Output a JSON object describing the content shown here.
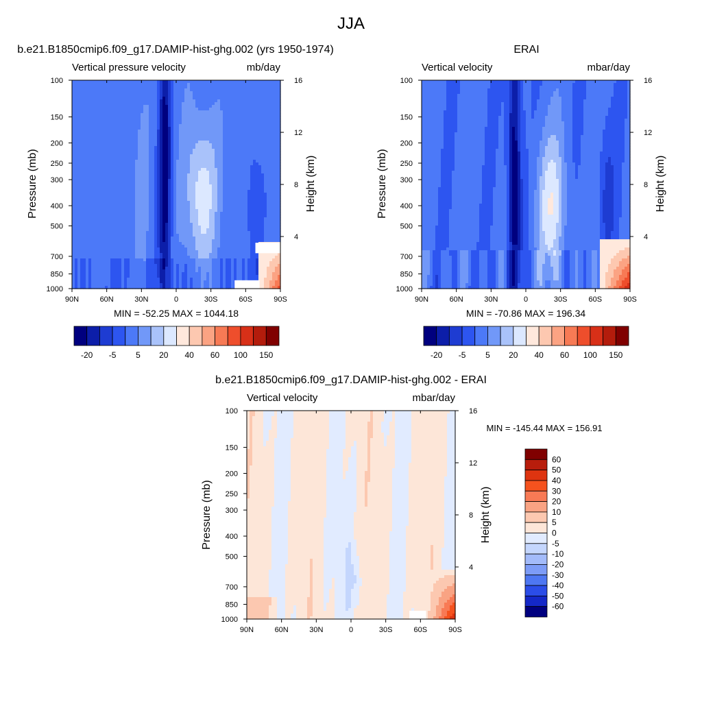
{
  "figure": {
    "title": "JJA"
  },
  "lat_labels": [
    "90N",
    "60N",
    "30N",
    "0",
    "30S",
    "60S",
    "90S"
  ],
  "lat_values": [
    90,
    60,
    30,
    0,
    -30,
    -60,
    -90
  ],
  "pressure_levels": [
    100,
    150,
    200,
    250,
    300,
    400,
    500,
    700,
    850,
    1000
  ],
  "height_km_ticks": [
    4,
    8,
    12,
    16
  ],
  "chart_data": [
    {
      "type": "heatmap",
      "title": "b.e21.B1850cmip6.f09_g17.DAMIP-hist-ghg.002 (yrs 1950-1974)",
      "left_label": "Vertical pressure velocity",
      "right_label": "mb/day",
      "xlabel": "",
      "ylabel": "Pressure (mb)",
      "y2label": "Height (km)",
      "stats": "MIN = -52.25  MAX = 1044.18",
      "xlim": [
        90,
        -90
      ],
      "ylim": [
        1000,
        100
      ],
      "colorbar": {
        "orientation": "horizontal",
        "levels": [
          -20,
          -5,
          5,
          20,
          40,
          60,
          100,
          150
        ],
        "tick_labels": [
          "-20",
          "-5",
          "5",
          "20",
          "40",
          "60",
          "100",
          "150"
        ],
        "colors": [
          "#00007f",
          "#0c1ea9",
          "#1e3cd2",
          "#2d55f0",
          "#4c79f8",
          "#7198f8",
          "#a9c2fa",
          "#dce8ff",
          "#ffe8dc",
          "#fdc8b0",
          "#fba383",
          "#f77a55",
          "#ee4e2c",
          "#d83018",
          "#b31c0c",
          "#800000"
        ]
      }
    },
    {
      "type": "heatmap",
      "title": "ERAI",
      "left_label": "Vertical velocity",
      "right_label": "mbar/day",
      "xlabel": "",
      "ylabel": "Pressure (mb)",
      "y2label": "Height (km)",
      "stats": "MIN = -70.86  MAX = 196.34",
      "xlim": [
        90,
        -90
      ],
      "ylim": [
        1000,
        100
      ],
      "colorbar": {
        "orientation": "horizontal",
        "levels": [
          -20,
          -5,
          5,
          20,
          40,
          60,
          100,
          150
        ],
        "tick_labels": [
          "-20",
          "-5",
          "5",
          "20",
          "40",
          "60",
          "100",
          "150"
        ],
        "colors": [
          "#00007f",
          "#0c1ea9",
          "#1e3cd2",
          "#2d55f0",
          "#4c79f8",
          "#7198f8",
          "#a9c2fa",
          "#dce8ff",
          "#ffe8dc",
          "#fdc8b0",
          "#fba383",
          "#f77a55",
          "#ee4e2c",
          "#d83018",
          "#b31c0c",
          "#800000"
        ]
      }
    },
    {
      "type": "heatmap",
      "title": "b.e21.B1850cmip6.f09_g17.DAMIP-hist-ghg.002 - ERAI",
      "left_label": "Vertical velocity",
      "right_label": "mbar/day",
      "xlabel": "",
      "ylabel": "Pressure (mb)",
      "y2label": "Height (km)",
      "stats": "MIN = -145.44  MAX = 156.91",
      "xlim": [
        90,
        -90
      ],
      "ylim": [
        1000,
        100
      ],
      "colorbar": {
        "orientation": "vertical",
        "levels": [
          60,
          50,
          40,
          30,
          20,
          10,
          5,
          0,
          -5,
          -10,
          -20,
          -30,
          -40,
          -50,
          -60
        ],
        "tick_labels": [
          "60",
          "50",
          "40",
          "30",
          "20",
          "10",
          "5",
          "0",
          "-5",
          "-10",
          "-20",
          "-30",
          "-40",
          "-50",
          "-60"
        ],
        "colors": [
          "#800000",
          "#b81d0c",
          "#de3410",
          "#f5521e",
          "#f87a55",
          "#f9a383",
          "#fcc8b0",
          "#fde6d8",
          "#e1ebff",
          "#c4d6fd",
          "#a3bbfa",
          "#7d9cf7",
          "#4e77f2",
          "#2b4de8",
          "#1428c8",
          "#00007f"
        ]
      }
    }
  ]
}
